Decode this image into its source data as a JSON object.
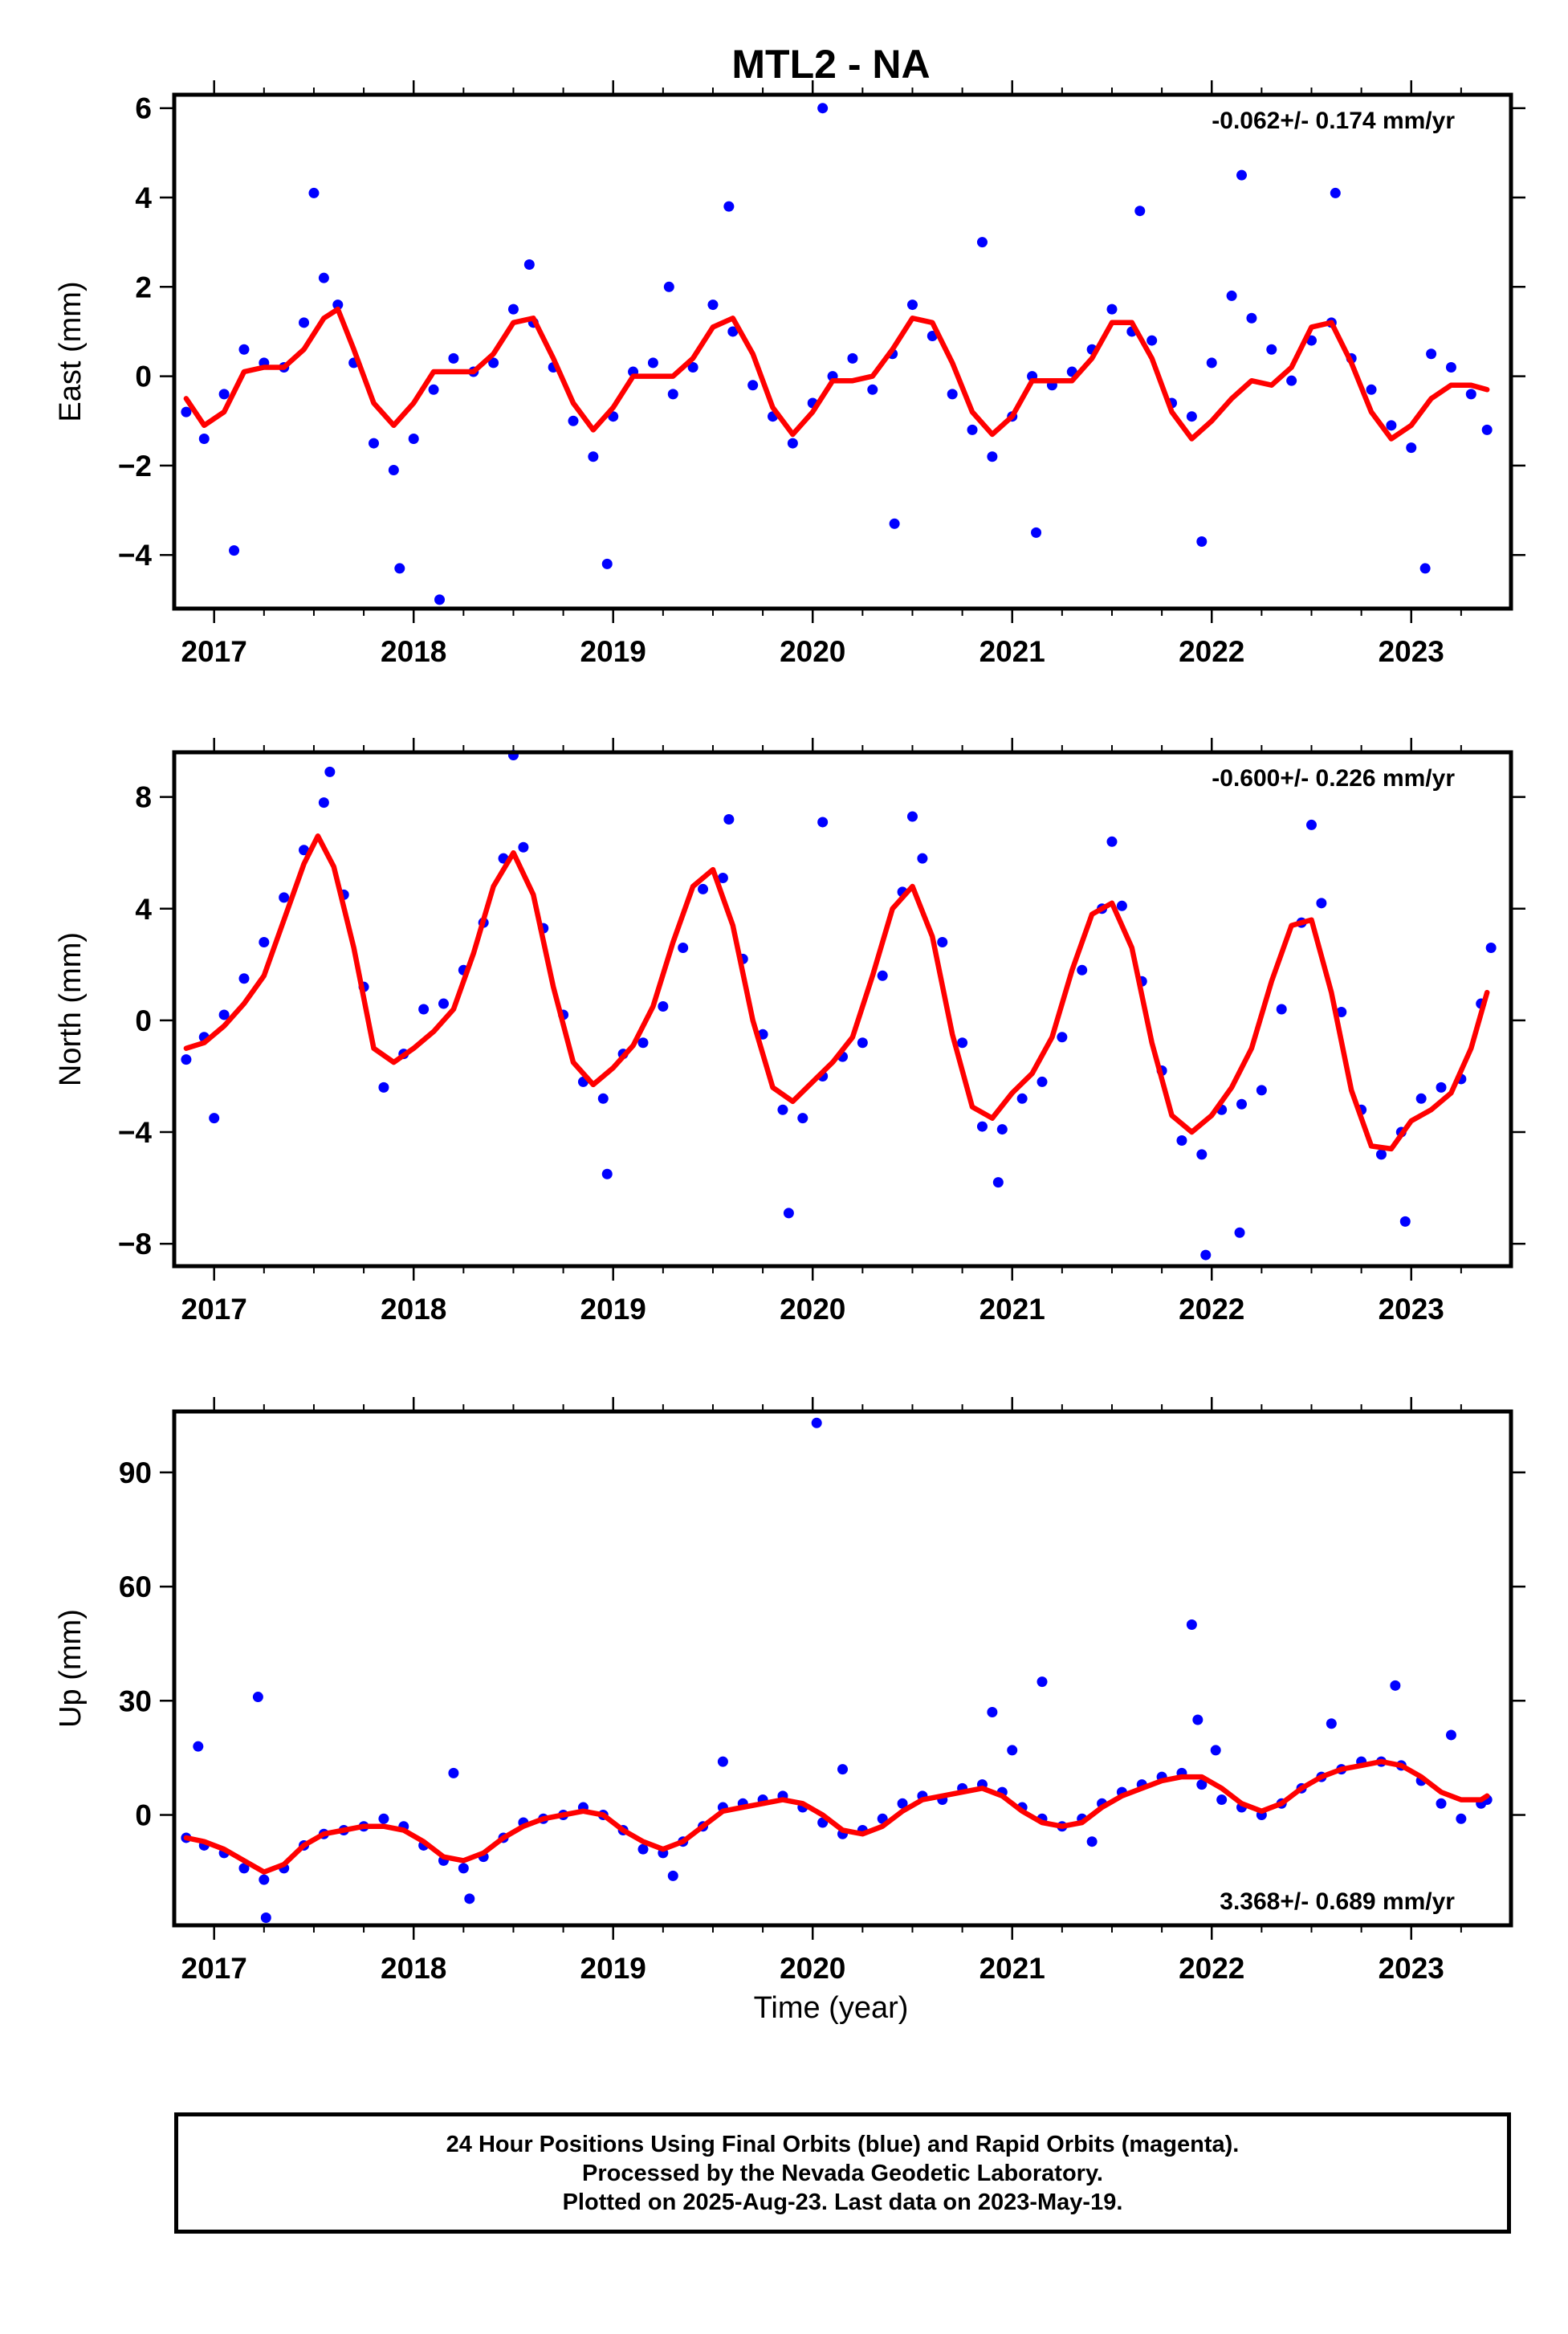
{
  "title": "MTL2 - NA",
  "xlabel": "Time (year)",
  "footer_lines": [
    "24 Hour Positions Using Final Orbits (blue) and Rapid Orbits (magenta).",
    "Processed by the Nevada Geodetic Laboratory.",
    "Plotted on 2025-Aug-23. Last data on 2023-May-19."
  ],
  "colors": {
    "points": "#0000ff",
    "model": "#ff0000",
    "axes": "#000000"
  },
  "chart_data": [
    {
      "type": "scatter",
      "ylabel": "East (mm)",
      "rate_text": "-0.062+/- 0.174 mm/yr",
      "rate_position": "top-right",
      "xlim": [
        2016.8,
        2023.5
      ],
      "ylim": [
        -5.2,
        6.3
      ],
      "x_ticks": [
        2017,
        2018,
        2019,
        2020,
        2021,
        2022,
        2023
      ],
      "y_ticks": [
        -4,
        -2,
        0,
        2,
        4,
        6
      ],
      "y_tick_labels": [
        "−4",
        "−2",
        "0",
        "2",
        "4",
        "6"
      ],
      "grid": false,
      "series": [
        {
          "kind": "points",
          "x": [
            2016.86,
            2016.95,
            2017.05,
            2017.15,
            2017.25,
            2017.35,
            2017.45,
            2017.55,
            2017.62,
            2017.7,
            2017.8,
            2017.9,
            2018.0,
            2018.1,
            2018.2,
            2018.3,
            2018.4,
            2018.5,
            2018.6,
            2018.7,
            2018.8,
            2018.9,
            2019.0,
            2019.1,
            2019.2,
            2019.3,
            2019.4,
            2019.5,
            2019.6,
            2019.7,
            2019.8,
            2019.9,
            2020.0,
            2020.1,
            2020.2,
            2020.3,
            2020.4,
            2020.5,
            2020.6,
            2020.7,
            2020.8,
            2020.9,
            2021.0,
            2021.1,
            2021.2,
            2021.3,
            2021.4,
            2021.5,
            2021.6,
            2021.7,
            2021.8,
            2021.9,
            2022.0,
            2022.1,
            2022.2,
            2022.3,
            2022.4,
            2022.5,
            2022.6,
            2022.7,
            2022.8,
            2022.9,
            2023.0,
            2023.1,
            2023.2,
            2023.3,
            2023.38,
            2017.1,
            2017.5,
            2017.93,
            2018.13,
            2018.58,
            2018.97,
            2019.28,
            2019.58,
            2020.05,
            2020.41,
            2020.85,
            2021.12,
            2021.64,
            2021.95,
            2022.15,
            2022.62,
            2023.07
          ],
          "y": [
            -0.8,
            -1.4,
            -0.4,
            0.6,
            0.3,
            0.2,
            1.2,
            2.2,
            1.6,
            0.3,
            -1.5,
            -2.1,
            -1.4,
            -0.3,
            0.4,
            0.1,
            0.3,
            1.5,
            1.2,
            0.2,
            -1.0,
            -1.8,
            -0.9,
            0.1,
            0.3,
            -0.4,
            0.2,
            1.6,
            1.0,
            -0.2,
            -0.9,
            -1.5,
            -0.6,
            0.0,
            0.4,
            -0.3,
            0.5,
            1.6,
            0.9,
            -0.4,
            -1.2,
            -1.8,
            -0.9,
            0.0,
            -0.2,
            0.1,
            0.6,
            1.5,
            1.0,
            0.8,
            -0.6,
            -0.9,
            0.3,
            1.8,
            1.3,
            0.6,
            -0.1,
            0.8,
            1.2,
            0.4,
            -0.3,
            -1.1,
            -1.6,
            0.5,
            0.2,
            -0.4,
            -1.2,
            -3.9,
            4.1,
            -4.3,
            -5.0,
            2.5,
            -4.2,
            2.0,
            3.8,
            6.0,
            -3.3,
            3.0,
            -3.5,
            3.7,
            -3.7,
            4.5,
            4.1,
            -4.3
          ]
        },
        {
          "kind": "model",
          "x": [
            2016.86,
            2016.95,
            2017.05,
            2017.15,
            2017.25,
            2017.35,
            2017.45,
            2017.55,
            2017.62,
            2017.7,
            2017.8,
            2017.9,
            2018.0,
            2018.1,
            2018.2,
            2018.3,
            2018.4,
            2018.5,
            2018.6,
            2018.7,
            2018.8,
            2018.9,
            2019.0,
            2019.1,
            2019.2,
            2019.3,
            2019.4,
            2019.5,
            2019.6,
            2019.7,
            2019.8,
            2019.9,
            2020.0,
            2020.1,
            2020.2,
            2020.3,
            2020.4,
            2020.5,
            2020.6,
            2020.7,
            2020.8,
            2020.9,
            2021.0,
            2021.1,
            2021.2,
            2021.3,
            2021.4,
            2021.5,
            2021.6,
            2021.7,
            2021.8,
            2021.9,
            2022.0,
            2022.1,
            2022.2,
            2022.3,
            2022.4,
            2022.5,
            2022.6,
            2022.7,
            2022.8,
            2022.9,
            2023.0,
            2023.1,
            2023.2,
            2023.3,
            2023.38
          ],
          "y": [
            -0.5,
            -1.1,
            -0.8,
            0.1,
            0.2,
            0.2,
            0.6,
            1.3,
            1.5,
            0.6,
            -0.6,
            -1.1,
            -0.6,
            0.1,
            0.1,
            0.1,
            0.5,
            1.2,
            1.3,
            0.4,
            -0.6,
            -1.2,
            -0.7,
            0.0,
            0.0,
            0.0,
            0.4,
            1.1,
            1.3,
            0.5,
            -0.7,
            -1.3,
            -0.8,
            -0.1,
            -0.1,
            0.0,
            0.6,
            1.3,
            1.2,
            0.3,
            -0.8,
            -1.3,
            -0.9,
            -0.1,
            -0.1,
            -0.1,
            0.4,
            1.2,
            1.2,
            0.4,
            -0.8,
            -1.4,
            -1.0,
            -0.5,
            -0.1,
            -0.2,
            0.2,
            1.1,
            1.2,
            0.3,
            -0.8,
            -1.4,
            -1.1,
            -0.5,
            -0.2,
            -0.2,
            -0.3
          ]
        }
      ]
    },
    {
      "type": "scatter",
      "ylabel": "North (mm)",
      "rate_text": "-0.600+/- 0.226 mm/yr",
      "rate_position": "top-right",
      "xlim": [
        2016.8,
        2023.5
      ],
      "ylim": [
        -8.8,
        9.6
      ],
      "x_ticks": [
        2017,
        2018,
        2019,
        2020,
        2021,
        2022,
        2023
      ],
      "y_ticks": [
        -8,
        -4,
        0,
        4,
        8
      ],
      "y_tick_labels": [
        "−8",
        "−4",
        "0",
        "4",
        "8"
      ],
      "grid": false,
      "series": [
        {
          "kind": "points",
          "x": [
            2016.86,
            2016.95,
            2017.05,
            2017.15,
            2017.25,
            2017.35,
            2017.45,
            2017.55,
            2017.65,
            2017.75,
            2017.85,
            2017.95,
            2018.05,
            2018.15,
            2018.25,
            2018.35,
            2018.45,
            2018.55,
            2018.65,
            2018.75,
            2018.85,
            2018.95,
            2019.05,
            2019.15,
            2019.25,
            2019.35,
            2019.45,
            2019.55,
            2019.65,
            2019.75,
            2019.85,
            2019.95,
            2020.05,
            2020.15,
            2020.25,
            2020.35,
            2020.45,
            2020.55,
            2020.65,
            2020.75,
            2020.85,
            2020.95,
            2021.05,
            2021.15,
            2021.25,
            2021.35,
            2021.45,
            2021.55,
            2021.65,
            2021.75,
            2021.85,
            2021.95,
            2022.05,
            2022.15,
            2022.25,
            2022.35,
            2022.45,
            2022.55,
            2022.65,
            2022.75,
            2022.85,
            2022.95,
            2023.05,
            2023.15,
            2023.25,
            2023.35,
            2017.0,
            2017.58,
            2018.5,
            2018.97,
            2019.58,
            2019.88,
            2020.05,
            2020.5,
            2020.93,
            2021.5,
            2021.97,
            2022.14,
            2022.5,
            2022.97,
            2023.4
          ],
          "y": [
            -1.4,
            -0.6,
            0.2,
            1.5,
            2.8,
            4.4,
            6.1,
            7.8,
            4.5,
            1.2,
            -2.4,
            -1.2,
            0.4,
            0.6,
            1.8,
            3.5,
            5.8,
            6.2,
            3.3,
            0.2,
            -2.2,
            -2.8,
            -1.2,
            -0.8,
            0.5,
            2.6,
            4.7,
            5.1,
            2.2,
            -0.5,
            -3.2,
            -3.5,
            -2.0,
            -1.3,
            -0.8,
            1.6,
            4.6,
            5.8,
            2.8,
            -0.8,
            -3.8,
            -3.9,
            -2.8,
            -2.2,
            -0.6,
            1.8,
            4.0,
            4.1,
            1.4,
            -1.8,
            -4.3,
            -4.8,
            -3.2,
            -3.0,
            -2.5,
            0.4,
            3.5,
            4.2,
            0.3,
            -3.2,
            -4.8,
            -4.0,
            -2.8,
            -2.4,
            -2.1,
            0.6,
            -3.5,
            8.9,
            9.5,
            -5.5,
            7.2,
            -6.9,
            7.1,
            7.3,
            -5.8,
            6.4,
            -8.4,
            -7.6,
            7.0,
            -7.2,
            2.6
          ]
        },
        {
          "kind": "model",
          "x": [
            2016.86,
            2016.95,
            2017.05,
            2017.15,
            2017.25,
            2017.35,
            2017.45,
            2017.52,
            2017.6,
            2017.7,
            2017.8,
            2017.9,
            2018.0,
            2018.1,
            2018.2,
            2018.3,
            2018.4,
            2018.5,
            2018.6,
            2018.7,
            2018.8,
            2018.9,
            2019.0,
            2019.1,
            2019.2,
            2019.3,
            2019.4,
            2019.5,
            2019.6,
            2019.7,
            2019.8,
            2019.9,
            2020.0,
            2020.1,
            2020.2,
            2020.3,
            2020.4,
            2020.5,
            2020.6,
            2020.7,
            2020.8,
            2020.9,
            2021.0,
            2021.1,
            2021.2,
            2021.3,
            2021.4,
            2021.5,
            2021.6,
            2021.7,
            2021.8,
            2021.9,
            2022.0,
            2022.1,
            2022.2,
            2022.3,
            2022.4,
            2022.5,
            2022.6,
            2022.7,
            2022.8,
            2022.9,
            2023.0,
            2023.1,
            2023.2,
            2023.3,
            2023.38
          ],
          "y": [
            -1.0,
            -0.8,
            -0.2,
            0.6,
            1.6,
            3.6,
            5.6,
            6.6,
            5.5,
            2.6,
            -1.0,
            -1.5,
            -1.0,
            -0.4,
            0.4,
            2.4,
            4.8,
            6.0,
            4.5,
            1.2,
            -1.5,
            -2.3,
            -1.7,
            -0.9,
            0.5,
            2.8,
            4.8,
            5.4,
            3.4,
            0.0,
            -2.4,
            -2.9,
            -2.2,
            -1.5,
            -0.6,
            1.6,
            4.0,
            4.8,
            3.0,
            -0.5,
            -3.1,
            -3.5,
            -2.6,
            -1.9,
            -0.6,
            1.8,
            3.8,
            4.2,
            2.6,
            -0.8,
            -3.4,
            -4.0,
            -3.4,
            -2.4,
            -1.0,
            1.4,
            3.4,
            3.6,
            1.0,
            -2.5,
            -4.5,
            -4.6,
            -3.6,
            -3.2,
            -2.6,
            -1.0,
            1.0
          ]
        }
      ]
    },
    {
      "type": "scatter",
      "ylabel": "Up (mm)",
      "rate_text": "3.368+/- 0.689 mm/yr",
      "rate_position": "bottom-right",
      "xlim": [
        2016.8,
        2023.5
      ],
      "ylim": [
        -29,
        106
      ],
      "x_ticks": [
        2017,
        2018,
        2019,
        2020,
        2021,
        2022,
        2023
      ],
      "y_ticks": [
        0,
        30,
        60,
        90
      ],
      "y_tick_labels": [
        "0",
        "30",
        "60",
        "90"
      ],
      "grid": false,
      "series": [
        {
          "kind": "points",
          "x": [
            2016.86,
            2016.95,
            2017.05,
            2017.15,
            2017.25,
            2017.35,
            2017.45,
            2017.55,
            2017.65,
            2017.75,
            2017.85,
            2017.95,
            2018.05,
            2018.15,
            2018.25,
            2018.35,
            2018.45,
            2018.55,
            2018.65,
            2018.75,
            2018.85,
            2018.95,
            2019.05,
            2019.15,
            2019.25,
            2019.35,
            2019.45,
            2019.55,
            2019.65,
            2019.75,
            2019.85,
            2019.95,
            2020.05,
            2020.15,
            2020.25,
            2020.35,
            2020.45,
            2020.55,
            2020.65,
            2020.75,
            2020.85,
            2020.95,
            2021.05,
            2021.15,
            2021.25,
            2021.35,
            2021.45,
            2021.55,
            2021.65,
            2021.75,
            2021.85,
            2021.95,
            2022.05,
            2022.15,
            2022.25,
            2022.35,
            2022.45,
            2022.55,
            2022.65,
            2022.75,
            2022.85,
            2022.95,
            2023.05,
            2023.15,
            2023.25,
            2023.35,
            2023.38,
            2016.92,
            2017.22,
            2017.26,
            2018.2,
            2018.28,
            2019.3,
            2019.55,
            2020.02,
            2020.15,
            2020.9,
            2021.0,
            2021.15,
            2021.4,
            2021.9,
            2021.93,
            2022.02,
            2022.6,
            2022.92,
            2023.2
          ],
          "y": [
            -6,
            -8,
            -10,
            -14,
            -17,
            -14,
            -8,
            -5,
            -4,
            -3,
            -1,
            -3,
            -8,
            -12,
            -14,
            -11,
            -6,
            -2,
            -1,
            0,
            2,
            0,
            -4,
            -9,
            -10,
            -7,
            -3,
            2,
            3,
            4,
            5,
            2,
            -2,
            -5,
            -4,
            -1,
            3,
            5,
            4,
            7,
            8,
            6,
            2,
            -1,
            -3,
            -1,
            3,
            6,
            8,
            10,
            11,
            8,
            4,
            2,
            0,
            3,
            7,
            10,
            12,
            14,
            14,
            13,
            9,
            3,
            -1,
            3,
            4,
            18,
            31,
            -27,
            11,
            -22,
            -16,
            14,
            103,
            12,
            27,
            17,
            35,
            -7,
            50,
            25,
            17,
            24,
            34,
            21
          ]
        },
        {
          "kind": "model",
          "x": [
            2016.86,
            2016.95,
            2017.05,
            2017.15,
            2017.25,
            2017.35,
            2017.45,
            2017.55,
            2017.65,
            2017.75,
            2017.85,
            2017.95,
            2018.05,
            2018.15,
            2018.25,
            2018.35,
            2018.45,
            2018.55,
            2018.65,
            2018.75,
            2018.85,
            2018.95,
            2019.05,
            2019.15,
            2019.25,
            2019.35,
            2019.45,
            2019.55,
            2019.65,
            2019.75,
            2019.85,
            2019.95,
            2020.05,
            2020.15,
            2020.25,
            2020.35,
            2020.45,
            2020.55,
            2020.65,
            2020.75,
            2020.85,
            2020.95,
            2021.05,
            2021.15,
            2021.25,
            2021.35,
            2021.45,
            2021.55,
            2021.65,
            2021.75,
            2021.85,
            2021.95,
            2022.05,
            2022.15,
            2022.25,
            2022.35,
            2022.45,
            2022.55,
            2022.65,
            2022.75,
            2022.85,
            2022.95,
            2023.05,
            2023.15,
            2023.25,
            2023.35,
            2023.38
          ],
          "y": [
            -6,
            -7,
            -9,
            -12,
            -15,
            -13,
            -8,
            -5,
            -4,
            -3,
            -3,
            -4,
            -7,
            -11,
            -12,
            -10,
            -6,
            -3,
            -1,
            0,
            1,
            0,
            -4,
            -7,
            -9,
            -7,
            -3,
            1,
            2,
            3,
            4,
            3,
            0,
            -4,
            -5,
            -3,
            1,
            4,
            5,
            6,
            7,
            5,
            1,
            -2,
            -3,
            -2,
            2,
            5,
            7,
            9,
            10,
            10,
            7,
            3,
            1,
            3,
            7,
            10,
            12,
            13,
            14,
            13,
            10,
            6,
            4,
            4,
            5
          ]
        }
      ]
    }
  ]
}
